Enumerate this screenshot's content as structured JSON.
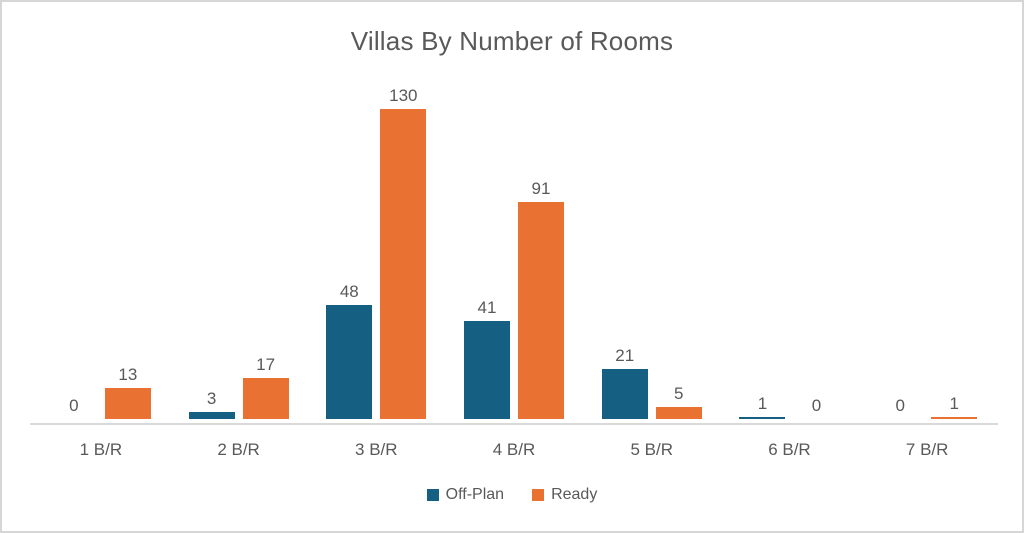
{
  "frame": {
    "background": "#ffffff",
    "border_color": "#d6d6d6"
  },
  "chart_data": {
    "type": "bar",
    "title": "Villas By Number of Rooms",
    "categories": [
      "1 B/R",
      "2 B/R",
      "3 B/R",
      "4 B/R",
      "5 B/R",
      "6 B/R",
      "7 B/R"
    ],
    "series": [
      {
        "name": "Off-Plan",
        "color": "#156082",
        "values": [
          0,
          3,
          48,
          41,
          21,
          1,
          0
        ]
      },
      {
        "name": "Ready",
        "color": "#E97132",
        "values": [
          13,
          17,
          130,
          91,
          5,
          0,
          1
        ]
      }
    ],
    "ylim": [
      0,
      130
    ],
    "xlabel": "",
    "ylabel": "",
    "grid": false,
    "data_labels": true,
    "legend_position": "bottom",
    "axis_line_color": "#D9D9D9",
    "text_color": "#595959"
  }
}
